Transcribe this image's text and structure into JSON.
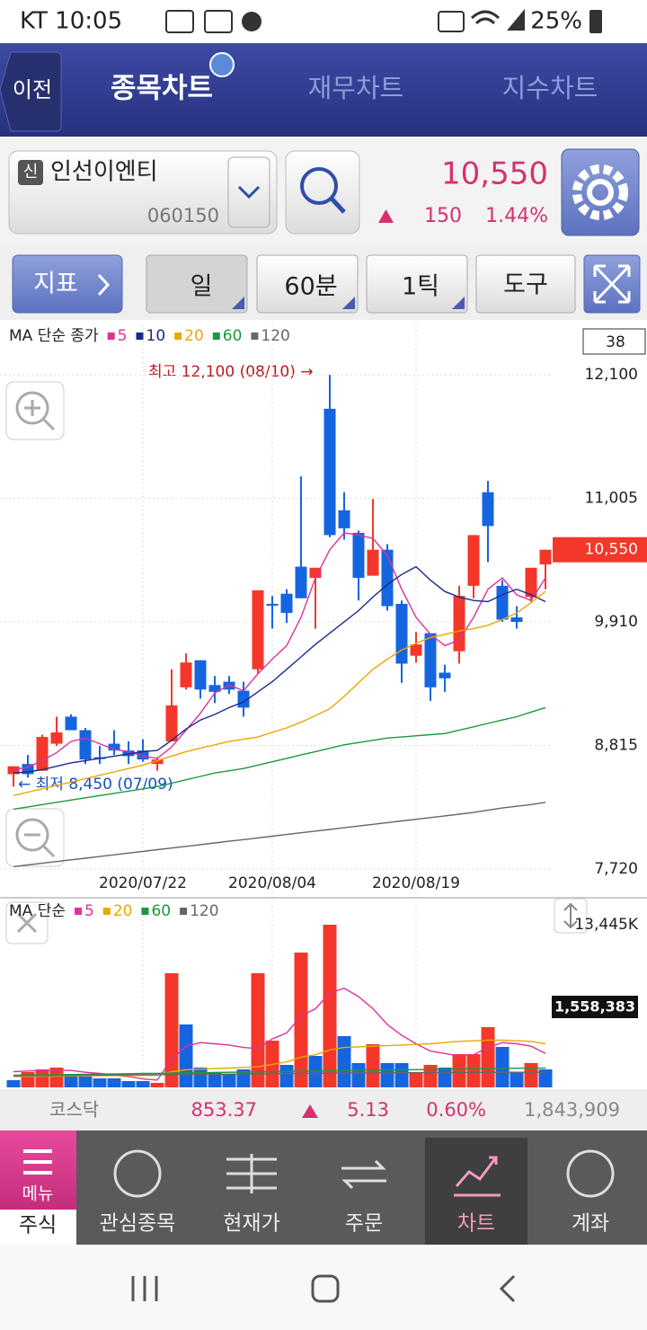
{
  "status_bar": {
    "carrier_time": "KT 10:05",
    "battery": "25%"
  },
  "tabs": {
    "back": "이전",
    "items": [
      "종목차트",
      "재무차트",
      "지수차트"
    ]
  },
  "stock": {
    "badge": "신",
    "name": "인선이엔티",
    "code": "060150",
    "price": "10,550",
    "change": "150",
    "change_rate": "1.44%"
  },
  "toolbar": {
    "indicator": "지표",
    "buttons": [
      "일",
      "60분",
      "1틱",
      "도구"
    ]
  },
  "chart_data": [
    {
      "type": "candlestick",
      "legend_title": "MA 단순 종가",
      "count_label": "38",
      "high_annotation": "최고 12,100 (08/10) →",
      "low_annotation": "← 최저 8,450 (07/09)",
      "up_color": "#f4372a",
      "down_color": "#1565e0",
      "categories": [
        null,
        null,
        null,
        null,
        null,
        null,
        null,
        null,
        null,
        "2020/07/22",
        null,
        null,
        null,
        null,
        null,
        null,
        null,
        null,
        "2020/08/04",
        null,
        null,
        null,
        null,
        null,
        null,
        null,
        null,
        null,
        "2020/08/19",
        null,
        null,
        null,
        null,
        null,
        null,
        null,
        null,
        null
      ],
      "open": [
        8560,
        8650,
        8590,
        8830,
        9070,
        8950,
        8710,
        8830,
        8770,
        8770,
        8650,
        8850,
        9330,
        9570,
        9350,
        9380,
        9300,
        9490,
        10070,
        10160,
        10400,
        10300,
        11800,
        10900,
        10700,
        10320,
        10550,
        10070,
        9610,
        9810,
        9460,
        9650,
        10230,
        11060,
        10230,
        9950,
        10130,
        10420
      ],
      "high": [
        8630,
        8730,
        8910,
        9070,
        9090,
        8970,
        8810,
        8950,
        8850,
        8870,
        8710,
        9490,
        9630,
        9570,
        9430,
        9430,
        9380,
        10190,
        10140,
        10200,
        11200,
        10390,
        12100,
        11060,
        10720,
        11000,
        10600,
        10100,
        9820,
        9810,
        9530,
        10230,
        10680,
        11160,
        10280,
        10050,
        10390,
        10550
      ],
      "low": [
        8450,
        8530,
        8590,
        8810,
        8950,
        8650,
        8650,
        8730,
        8650,
        8670,
        8590,
        8850,
        9310,
        9230,
        9190,
        9270,
        9070,
        9450,
        9850,
        9900,
        10120,
        9850,
        10660,
        10640,
        10100,
        10320,
        10010,
        9370,
        9550,
        9210,
        9290,
        9540,
        10120,
        10440,
        9910,
        9850,
        10090,
        10200
      ],
      "close": [
        8630,
        8560,
        8890,
        8930,
        8950,
        8690,
        8700,
        8770,
        8720,
        8690,
        8690,
        9170,
        9550,
        9310,
        9290,
        9310,
        9150,
        10190,
        10060,
        9990,
        10120,
        10390,
        10680,
        10740,
        10300,
        10550,
        10050,
        9540,
        9710,
        9330,
        9410,
        10140,
        10680,
        10760,
        9930,
        9910,
        10390,
        10550
      ],
      "series": [
        {
          "name": "5",
          "color": "#e0309a",
          "values": [
            8600,
            8620,
            8680,
            8750,
            8850,
            8880,
            8830,
            8780,
            8760,
            8720,
            8700,
            8800,
            8950,
            9100,
            9280,
            9350,
            9300,
            9450,
            9580,
            9700,
            9950,
            10300,
            10550,
            10700,
            10680,
            10650,
            10500,
            10200,
            9950,
            9800,
            9700,
            9750,
            9950,
            10200,
            10300,
            10150,
            10100,
            10300
          ]
        },
        {
          "name": "10",
          "color": "#1a2a8a",
          "values": [
            8570,
            8580,
            8600,
            8630,
            8660,
            8680,
            8700,
            8720,
            8740,
            8760,
            8770,
            8860,
            8960,
            9040,
            9090,
            9150,
            9200,
            9290,
            9380,
            9490,
            9600,
            9710,
            9810,
            9910,
            10010,
            10130,
            10240,
            10330,
            10400,
            10280,
            10180,
            10130,
            10100,
            10090,
            10150,
            10200,
            10150,
            10090
          ]
        },
        {
          "name": "20",
          "color": "#e8a800",
          "values": [
            8370,
            8400,
            8430,
            8460,
            8490,
            8520,
            8550,
            8580,
            8610,
            8640,
            8680,
            8720,
            8760,
            8790,
            8820,
            8850,
            8870,
            8890,
            8930,
            8970,
            9020,
            9080,
            9140,
            9250,
            9370,
            9490,
            9580,
            9660,
            9720,
            9770,
            9800,
            9830,
            9850,
            9880,
            9930,
            9990,
            10080,
            10180
          ]
        },
        {
          "name": "60",
          "color": "#1a9a3a",
          "values": [
            8250,
            8270,
            8290,
            8310,
            8330,
            8350,
            8370,
            8390,
            8410,
            8430,
            8450,
            8480,
            8510,
            8540,
            8570,
            8590,
            8610,
            8640,
            8670,
            8700,
            8730,
            8760,
            8790,
            8820,
            8840,
            8860,
            8880,
            8890,
            8900,
            8910,
            8920,
            8950,
            8980,
            9010,
            9040,
            9070,
            9110,
            9150
          ]
        },
        {
          "name": "120",
          "color": "#666666",
          "values": [
            7740,
            7755,
            7770,
            7785,
            7800,
            7815,
            7830,
            7845,
            7860,
            7875,
            7890,
            7905,
            7920,
            7935,
            7950,
            7965,
            7980,
            7995,
            8010,
            8025,
            8040,
            8055,
            8070,
            8085,
            8100,
            8115,
            8130,
            8145,
            8160,
            8175,
            8190,
            8205,
            8220,
            8240,
            8260,
            8275,
            8290,
            8310
          ]
        }
      ],
      "ylim": [
        7480,
        12540
      ],
      "yticks": [
        {
          "value": 7720,
          "label": "7,720"
        },
        {
          "value": 8815,
          "label": "8,815"
        },
        {
          "value": 9910,
          "label": "9,910"
        },
        {
          "value": 11005,
          "label": "11,005"
        },
        {
          "value": 12100,
          "label": "12,100"
        }
      ],
      "last_label": {
        "value": 10550,
        "label": "10,550"
      },
      "grid": true
    },
    {
      "type": "bar",
      "legend_title": "MA 단순",
      "value_box": "1,558,383",
      "values": [
        594,
        1263,
        1486,
        1634,
        891,
        891,
        743,
        743,
        520,
        520,
        371,
        9434,
        5200,
        1634,
        1263,
        1114,
        1486,
        9434,
        3863,
        1857,
        11142,
        2600,
        13445,
        4234,
        2006,
        3566,
        2006,
        2006,
        1263,
        1857,
        1634,
        2749,
        2749,
        4977,
        3343,
        1263,
        2006,
        1486
      ],
      "colors": [
        "#1565e0",
        "#f4372a",
        "#f4372a",
        "#f4372a",
        "#1565e0",
        "#1565e0",
        "#1565e0",
        "#1565e0",
        "#1565e0",
        "#1565e0",
        "#f4372a",
        "#f4372a",
        "#1565e0",
        "#1565e0",
        "#1565e0",
        "#1565e0",
        "#1565e0",
        "#f4372a",
        "#f4372a",
        "#1565e0",
        "#f4372a",
        "#1565e0",
        "#f4372a",
        "#1565e0",
        "#1565e0",
        "#f4372a",
        "#1565e0",
        "#1565e0",
        "#f4372a",
        "#f4372a",
        "#1565e0",
        "#f4372a",
        "#f4372a",
        "#f4372a",
        "#1565e0",
        "#1565e0",
        "#f4372a",
        "#1565e0"
      ],
      "series": [
        {
          "name": "5",
          "color": "#e0309a",
          "values": [
            1300,
            1350,
            1400,
            1420,
            1400,
            1250,
            1150,
            1000,
            900,
            700,
            600,
            2300,
            3400,
            3700,
            3600,
            3500,
            3300,
            3200,
            4000,
            4500,
            5900,
            6500,
            7800,
            8200,
            7500,
            6500,
            5200,
            4300,
            3600,
            3000,
            2800,
            2600,
            2700,
            3300,
            3700,
            3600,
            3400,
            2800
          ]
        },
        {
          "name": "20",
          "color": "#e8a800",
          "values": [
            900,
            900,
            920,
            930,
            940,
            950,
            960,
            970,
            980,
            990,
            1000,
            1300,
            1450,
            1500,
            1550,
            1600,
            1650,
            1700,
            1900,
            2100,
            2500,
            2700,
            3100,
            3300,
            3350,
            3400,
            3450,
            3500,
            3550,
            3600,
            3700,
            3800,
            3850,
            3900,
            3900,
            3850,
            3800,
            3600
          ]
        },
        {
          "name": "60",
          "color": "#1a9a3a",
          "values": [
            1000,
            1020,
            1030,
            1050,
            1060,
            1080,
            1100,
            1110,
            1130,
            1150,
            1160,
            1180,
            1200,
            1210,
            1230,
            1250,
            1260,
            1280,
            1300,
            1310,
            1330,
            1350,
            1360,
            1380,
            1400,
            1410,
            1430,
            1450,
            1460,
            1480,
            1500,
            1510,
            1530,
            1550,
            1560,
            1580,
            1590,
            1600
          ]
        },
        {
          "name": "120",
          "color": "#666666",
          "values": [
            950,
            960,
            970,
            980,
            990,
            1000,
            1010,
            1020,
            1030,
            1040,
            1050,
            1060,
            1070,
            1080,
            1090,
            1100,
            1110,
            1120,
            1130,
            1140,
            1150,
            1160,
            1170,
            1180,
            1190,
            1200,
            1205,
            1210,
            1215,
            1220,
            1225,
            1230,
            1235,
            1240,
            1245,
            1250,
            1250,
            1250
          ]
        }
      ],
      "ylim": [
        0,
        15376
      ],
      "yticks": [
        {
          "value": 13445,
          "label": "13,445K"
        }
      ]
    }
  ],
  "index_bar": {
    "name": "코스닥",
    "value": "853.37",
    "change": "5.13",
    "change_rate": "0.60%",
    "volume": "1,843,909"
  },
  "bottom_nav": {
    "menu": "메뉴",
    "items": [
      "주식",
      "관심종목",
      "현재가",
      "주문",
      "차트",
      "계좌"
    ]
  }
}
